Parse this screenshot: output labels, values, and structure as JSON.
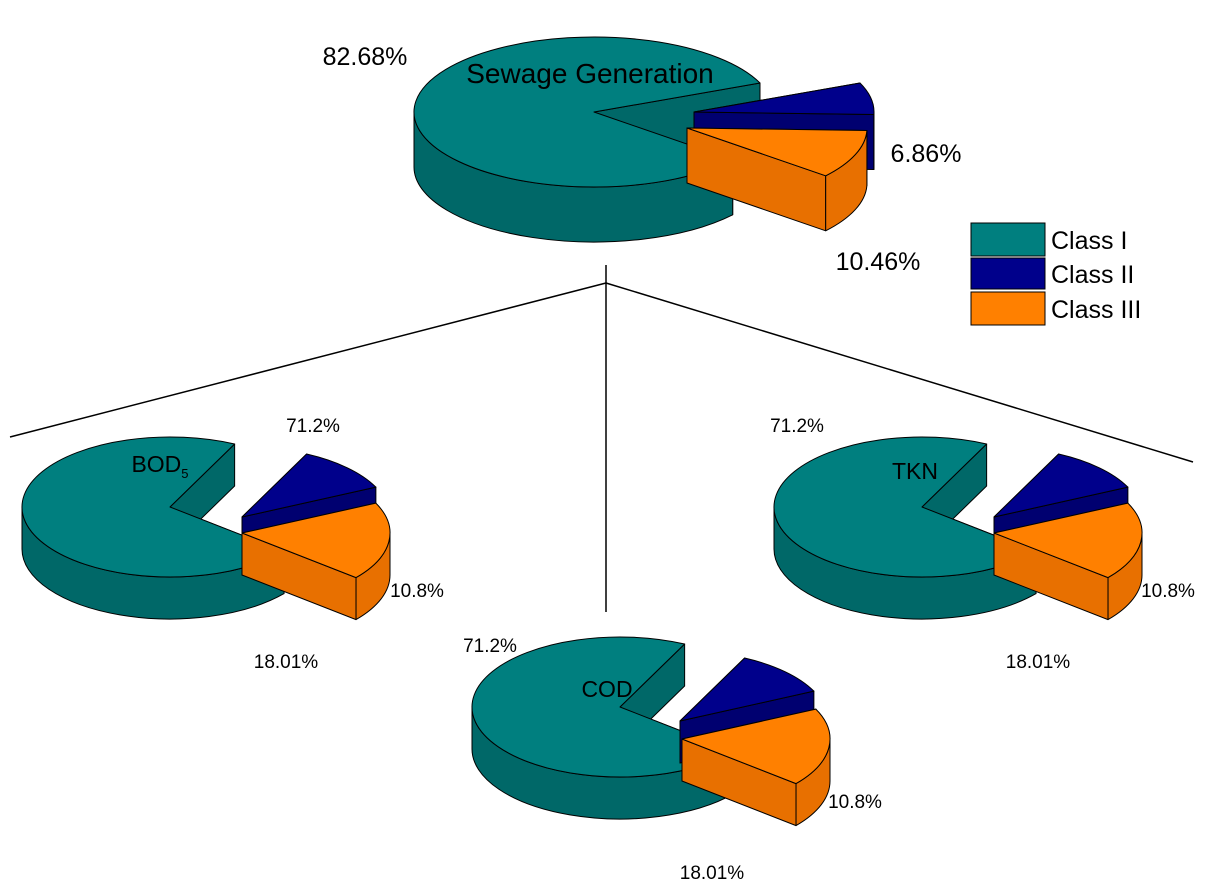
{
  "chart_data": [
    {
      "type": "pie",
      "id": "sewage",
      "title": "Sewage Generation",
      "categories": [
        "Class I",
        "Class II",
        "Class III"
      ],
      "values": [
        82.68,
        6.86,
        10.46
      ],
      "labels": [
        "82.68%",
        "6.86%",
        "10.46%"
      ]
    },
    {
      "type": "pie",
      "id": "bod",
      "title": "BOD",
      "title_sub": "5",
      "categories": [
        "Class I",
        "Class II",
        "Class III"
      ],
      "values": [
        71.2,
        10.8,
        18.01
      ],
      "labels": [
        "71.2%",
        "10.8%",
        "18.01%"
      ]
    },
    {
      "type": "pie",
      "id": "cod",
      "title": "COD",
      "categories": [
        "Class I",
        "Class II",
        "Class III"
      ],
      "values": [
        71.2,
        10.8,
        18.01
      ],
      "labels": [
        "71.2%",
        "10.8%",
        "18.01%"
      ]
    },
    {
      "type": "pie",
      "id": "tkn",
      "title": "TKN",
      "categories": [
        "Class I",
        "Class II",
        "Class III"
      ],
      "values": [
        71.2,
        10.8,
        18.01
      ],
      "labels": [
        "71.2%",
        "10.8%",
        "18.01%"
      ]
    }
  ],
  "legend": {
    "placement": "right",
    "items": [
      {
        "label": "Class I",
        "color": "#007f7f"
      },
      {
        "label": "Class II",
        "color": "#00008b"
      },
      {
        "label": "Class III",
        "color": "#ff8000"
      }
    ]
  },
  "colors": {
    "class_1": "#007f7f",
    "class_1_side": "#006868",
    "class_2": "#00008b",
    "class_2_side": "#000070",
    "class_3": "#ff8000",
    "class_3_side": "#e87000"
  }
}
